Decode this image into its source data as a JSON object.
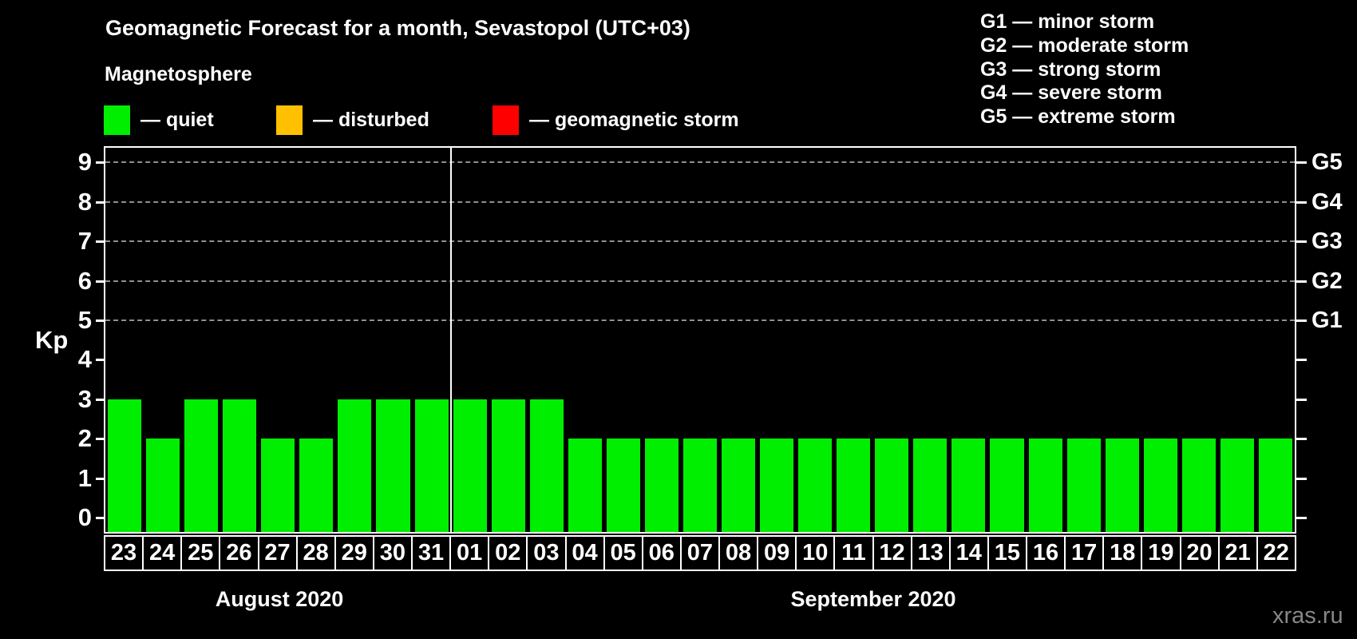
{
  "title": "Geomagnetic Forecast for a month, Sevastopol (UTC+03)",
  "subtitle": "Magnetosphere",
  "legend": {
    "items": [
      {
        "name": "quiet",
        "label": "— quiet",
        "color": "#00ee00"
      },
      {
        "name": "disturbed",
        "label": "— disturbed",
        "color": "#ffc000"
      },
      {
        "name": "geomagnetic-storm",
        "label": "— geomagnetic storm",
        "color": "#ff0000"
      }
    ]
  },
  "storm_scale_legend": {
    "lines": [
      "G1 — minor storm",
      "G2 — moderate storm",
      "G3 — strong storm",
      "G4 — severe storm",
      "G5 — extreme storm"
    ]
  },
  "watermark": "xras.ru",
  "chart_data": {
    "type": "bar",
    "title": "Geomagnetic Forecast for a month, Sevastopol (UTC+03)",
    "ylabel": "Kp",
    "ylim": [
      0,
      9.4
    ],
    "yticks": [
      0,
      1,
      2,
      3,
      4,
      5,
      6,
      7,
      8,
      9
    ],
    "grid": true,
    "grid_levels": [
      5,
      6,
      7,
      8,
      9
    ],
    "right_axis_labels": [
      {
        "kp": 5,
        "label": "G1"
      },
      {
        "kp": 6,
        "label": "G2"
      },
      {
        "kp": 7,
        "label": "G3"
      },
      {
        "kp": 8,
        "label": "G4"
      },
      {
        "kp": 9,
        "label": "G5"
      }
    ],
    "bar_color": "#00ee00",
    "legend_position": "top-left",
    "months": [
      {
        "label": "August 2020",
        "days": [
          "23",
          "24",
          "25",
          "26",
          "27",
          "28",
          "29",
          "30",
          "31"
        ],
        "values": [
          3,
          2,
          3,
          3,
          2,
          2,
          3,
          3,
          3
        ]
      },
      {
        "label": "September 2020",
        "days": [
          "01",
          "02",
          "03",
          "04",
          "05",
          "06",
          "07",
          "08",
          "09",
          "10",
          "11",
          "12",
          "13",
          "14",
          "15",
          "16",
          "17",
          "18",
          "19",
          "20",
          "21",
          "22"
        ],
        "values": [
          3,
          3,
          3,
          2,
          2,
          2,
          2,
          2,
          2,
          2,
          2,
          2,
          2,
          2,
          2,
          2,
          2,
          2,
          2,
          2,
          2,
          2
        ]
      }
    ]
  }
}
